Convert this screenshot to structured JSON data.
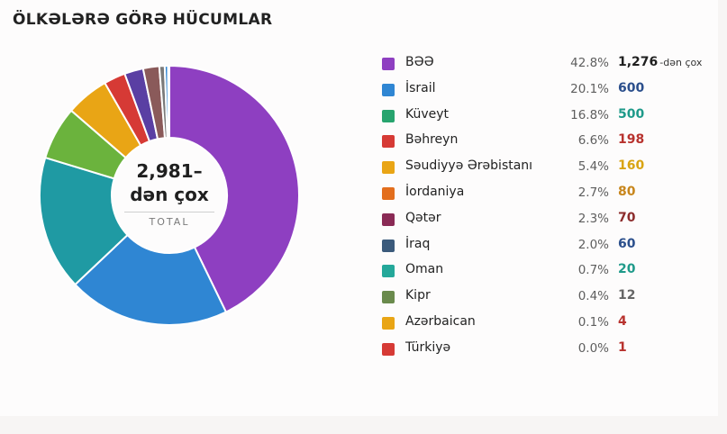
{
  "title": "ÖLKƏLƏRƏ GÖRƏ HÜCUMLAR",
  "center": {
    "value_line1": "2,981–",
    "value_line2": "dən çox",
    "label": "TOTAL"
  },
  "chart_data": {
    "type": "pie",
    "title": "ÖLKƏLƏRƏ GÖRƏ HÜCUMLAR",
    "donut": true,
    "total": 2981,
    "categories": [
      "BƏƏ",
      "İsrail",
      "Küveyt",
      "Bəhreyn",
      "Səudiyyə Ərəbistanı",
      "İordaniya",
      "Qətər",
      "İraq",
      "Oman",
      "Kipr",
      "Azərbaican",
      "Türkiyə"
    ],
    "values": [
      1276,
      600,
      500,
      198,
      160,
      80,
      70,
      60,
      20,
      12,
      4,
      1
    ],
    "percent_labels": [
      "42.8%",
      "20.1%",
      "16.8%",
      "6.6%",
      "5.4%",
      "2.7%",
      "2.3%",
      "2.0%",
      "0.7%",
      "0.4%",
      "0.1%",
      "0.0%"
    ],
    "value_labels": [
      "1,276",
      "600",
      "500",
      "198",
      "160",
      "80",
      "70",
      "60",
      "20",
      "12",
      "4",
      "1"
    ],
    "value_suffixes": [
      "-dən çox",
      "",
      "",
      "",
      "",
      "",
      "",
      "",
      "",
      "",
      "",
      ""
    ],
    "colors": [
      "#8e3fc1",
      "#2f86d3",
      "#27a46e",
      "#d63a35",
      "#e9a515",
      "#e36e1d",
      "#8a2a55",
      "#3b5a7b",
      "#24a89a",
      "#6a8a4c",
      "#e9a515",
      "#d63a35"
    ],
    "value_colors": [
      "#1f1f1f",
      "#2b4f8c",
      "#1f9a8a",
      "#b8322e",
      "#d9a412",
      "#c8861c",
      "#8c2c2c",
      "#2b4f8c",
      "#1f9a8a",
      "#666666",
      "#b8322e",
      "#b8322e"
    ],
    "slice_colors": [
      "#8e3fc1",
      "#2f86d3",
      "#1f9aa3",
      "#6bb33d",
      "#e9a515",
      "#d63a35",
      "#5a3fa3",
      "#8a5a5a",
      "#7a7a7a",
      "#2f86d3",
      "#27a46e",
      "#d63a35"
    ],
    "legend_position": "right"
  }
}
